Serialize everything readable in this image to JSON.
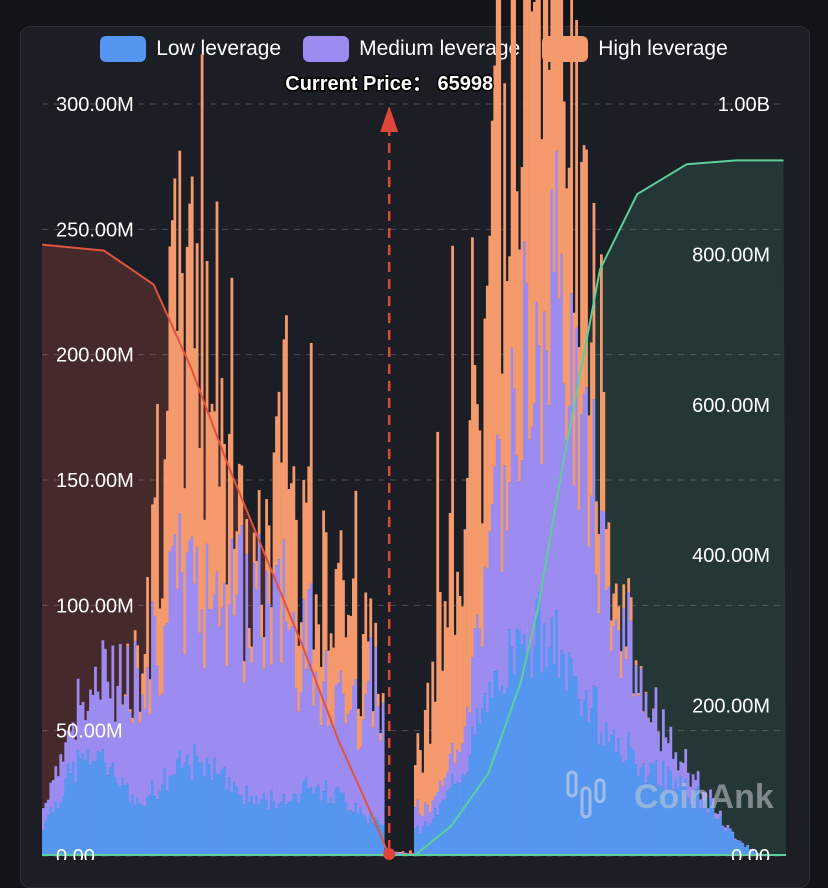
{
  "chart_data": {
    "type": "bar",
    "title": "",
    "annotation": "Current Price： 65998",
    "legend": [
      {
        "name": "Low leverage",
        "color": "#5596f0"
      },
      {
        "name": "Medium leverage",
        "color": "#9c8cf2"
      },
      {
        "name": "High leverage",
        "color": "#f59a6c"
      }
    ],
    "y_left": {
      "min": 0,
      "max": 300,
      "unit": "M",
      "ticks": [
        "0.00",
        "50.00M",
        "100.00M",
        "150.00M",
        "200.00M",
        "250.00M",
        "300.00M"
      ]
    },
    "y_right": {
      "min": 0,
      "max": 1000,
      "unit": "M",
      "ticks": [
        "0.00",
        "200.00M",
        "400.00M",
        "600.00M",
        "800.00M",
        "1.00B"
      ]
    },
    "bins": 300,
    "current_price_bin": 140,
    "series_shape": {
      "low_peaks": [
        [
          18,
          12,
          38
        ],
        [
          60,
          16,
          36
        ],
        [
          110,
          20,
          26
        ],
        [
          195,
          20,
          78
        ],
        [
          240,
          30,
          32
        ]
      ],
      "mid_peaks": [
        [
          55,
          28,
          60
        ],
        [
          100,
          24,
          52
        ],
        [
          135,
          6,
          30
        ],
        [
          190,
          14,
          40
        ],
        [
          205,
          14,
          90
        ],
        [
          225,
          20,
          36
        ]
      ],
      "high_peaks": [
        [
          52,
          6,
          70
        ],
        [
          65,
          8,
          95
        ],
        [
          98,
          6,
          55
        ],
        [
          118,
          8,
          50
        ],
        [
          168,
          10,
          80
        ],
        [
          183,
          4,
          60
        ],
        [
          197,
          8,
          160
        ],
        [
          206,
          10,
          70
        ],
        [
          218,
          8,
          40
        ]
      ]
    },
    "cumulative_short": [
      {
        "bin": 0,
        "value": 813
      },
      {
        "bin": 25,
        "value": 805
      },
      {
        "bin": 45,
        "value": 760
      },
      {
        "bin": 60,
        "value": 650
      },
      {
        "bin": 75,
        "value": 520
      },
      {
        "bin": 90,
        "value": 400
      },
      {
        "bin": 105,
        "value": 280
      },
      {
        "bin": 120,
        "value": 150
      },
      {
        "bin": 135,
        "value": 40
      },
      {
        "bin": 140,
        "value": 0
      }
    ],
    "cumulative_long": [
      {
        "bin": 150,
        "value": 0
      },
      {
        "bin": 165,
        "value": 40
      },
      {
        "bin": 180,
        "value": 110
      },
      {
        "bin": 193,
        "value": 230
      },
      {
        "bin": 200,
        "value": 330
      },
      {
        "bin": 210,
        "value": 520
      },
      {
        "bin": 225,
        "value": 780
      },
      {
        "bin": 240,
        "value": 880
      },
      {
        "bin": 260,
        "value": 920
      },
      {
        "bin": 280,
        "value": 925
      },
      {
        "bin": 299,
        "value": 925
      }
    ],
    "short_color": "#e0533f",
    "long_color": "#5ccf9a",
    "watermark": "CoinAnk"
  }
}
